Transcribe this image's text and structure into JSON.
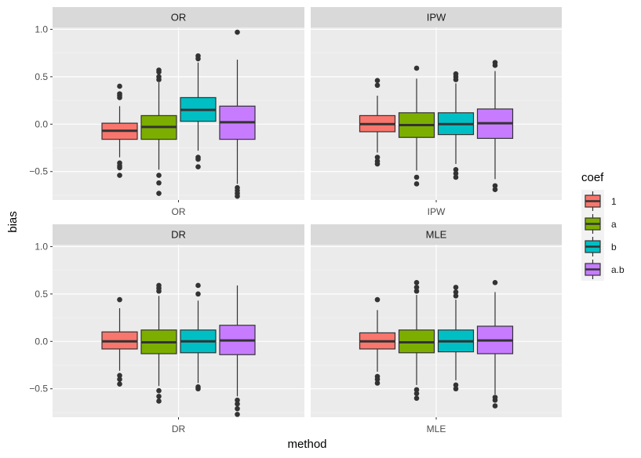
{
  "chart_data": {
    "type": "boxplot",
    "xlabel": "method",
    "ylabel": "bias",
    "ylim": [
      -0.8,
      1.02
    ],
    "yticks": [
      -0.5,
      0.0,
      0.5,
      1.0
    ],
    "ytick_labels": [
      "−0.5",
      "0.0",
      "0.5",
      "1.0"
    ],
    "legend": {
      "title": "coef",
      "placement": "right",
      "entries": [
        {
          "label": "1",
          "color": "#F8766D"
        },
        {
          "label": "a",
          "color": "#7CAE00"
        },
        {
          "label": "b",
          "color": "#00BFC4"
        },
        {
          "label": "a.b",
          "color": "#C77CFF"
        }
      ]
    },
    "panels": [
      {
        "title": "OR",
        "xtick": "OR",
        "boxes": [
          {
            "coef": "1",
            "min": -0.35,
            "q1": -0.16,
            "median": -0.07,
            "q3": 0.01,
            "max": 0.19,
            "outliers": [
              0.4,
              0.32,
              0.3,
              0.28,
              -0.41,
              -0.44,
              -0.46,
              -0.54
            ]
          },
          {
            "coef": "a",
            "min": -0.48,
            "q1": -0.16,
            "median": -0.03,
            "q3": 0.09,
            "max": 0.44,
            "outliers": [
              0.57,
              0.55,
              0.5,
              0.47,
              -0.54,
              -0.62,
              -0.73
            ]
          },
          {
            "coef": "b",
            "min": -0.28,
            "q1": 0.03,
            "median": 0.15,
            "q3": 0.28,
            "max": 0.65,
            "outliers": [
              0.72,
              0.69,
              -0.35,
              -0.37,
              -0.45
            ]
          },
          {
            "coef": "a.b",
            "min": -0.63,
            "q1": -0.16,
            "median": 0.02,
            "q3": 0.19,
            "max": 0.68,
            "outliers": [
              0.97,
              -0.67,
              -0.7,
              -0.73,
              -0.76
            ]
          }
        ]
      },
      {
        "title": "IPW",
        "xtick": "IPW",
        "boxes": [
          {
            "coef": "1",
            "min": -0.3,
            "q1": -0.08,
            "median": 0.0,
            "q3": 0.09,
            "max": 0.3,
            "outliers": [
              0.46,
              0.41,
              -0.35,
              -0.39,
              -0.42
            ]
          },
          {
            "coef": "a",
            "min": -0.49,
            "q1": -0.14,
            "median": -0.01,
            "q3": 0.12,
            "max": 0.48,
            "outliers": [
              0.59,
              -0.56,
              -0.63
            ]
          },
          {
            "coef": "b",
            "min": -0.42,
            "q1": -0.11,
            "median": 0.0,
            "q3": 0.12,
            "max": 0.43,
            "outliers": [
              0.53,
              0.5,
              0.47,
              -0.48,
              -0.52,
              -0.56
            ]
          },
          {
            "coef": "a.b",
            "min": -0.58,
            "q1": -0.15,
            "median": 0.01,
            "q3": 0.16,
            "max": 0.56,
            "outliers": [
              0.65,
              0.62,
              -0.65,
              -0.69
            ]
          }
        ]
      },
      {
        "title": "DR",
        "xtick": "DR",
        "boxes": [
          {
            "coef": "1",
            "min": -0.31,
            "q1": -0.08,
            "median": 0.0,
            "q3": 0.1,
            "max": 0.35,
            "outliers": [
              0.44,
              -0.36,
              -0.4,
              -0.45
            ]
          },
          {
            "coef": "a",
            "min": -0.47,
            "q1": -0.13,
            "median": -0.01,
            "q3": 0.12,
            "max": 0.48,
            "outliers": [
              0.59,
              0.56,
              0.53,
              -0.52,
              -0.58,
              -0.63
            ]
          },
          {
            "coef": "b",
            "min": -0.44,
            "q1": -0.12,
            "median": 0.0,
            "q3": 0.12,
            "max": 0.43,
            "outliers": [
              0.59,
              0.5,
              -0.48,
              -0.5
            ]
          },
          {
            "coef": "a.b",
            "min": -0.58,
            "q1": -0.14,
            "median": 0.01,
            "q3": 0.17,
            "max": 0.59,
            "outliers": [
              -0.62,
              -0.66,
              -0.71,
              -0.77
            ]
          }
        ]
      },
      {
        "title": "MLE",
        "xtick": "MLE",
        "boxes": [
          {
            "coef": "1",
            "min": -0.32,
            "q1": -0.08,
            "median": 0.0,
            "q3": 0.09,
            "max": 0.33,
            "outliers": [
              0.44,
              -0.37,
              -0.4,
              -0.44
            ]
          },
          {
            "coef": "a",
            "min": -0.46,
            "q1": -0.12,
            "median": -0.01,
            "q3": 0.12,
            "max": 0.49,
            "outliers": [
              0.62,
              0.57,
              0.53,
              -0.51,
              -0.55,
              -0.6
            ]
          },
          {
            "coef": "b",
            "min": -0.41,
            "q1": -0.11,
            "median": 0.0,
            "q3": 0.12,
            "max": 0.44,
            "outliers": [
              0.57,
              0.52,
              0.48,
              -0.46,
              -0.5
            ]
          },
          {
            "coef": "a.b",
            "min": -0.56,
            "q1": -0.13,
            "median": 0.01,
            "q3": 0.16,
            "max": 0.52,
            "outliers": [
              0.62,
              -0.59,
              -0.62,
              -0.68
            ]
          }
        ]
      }
    ]
  }
}
